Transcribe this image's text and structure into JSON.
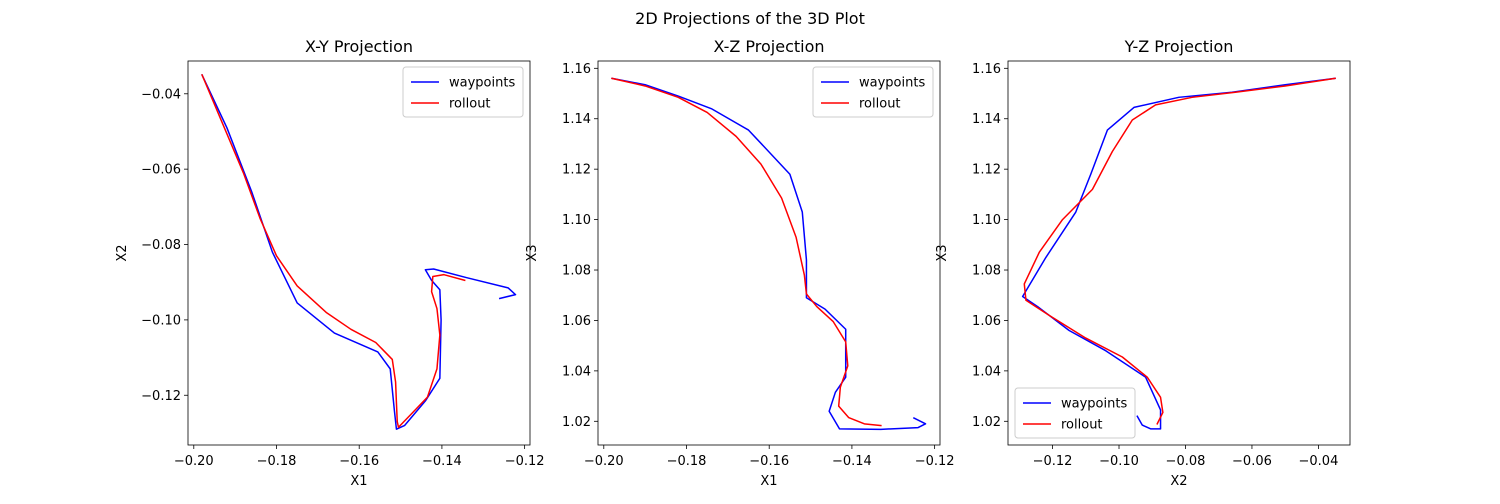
{
  "figure": {
    "title": "2D Projections of the 3D Plot"
  },
  "colors": {
    "waypoints": "#0000ff",
    "rollout": "#ff0000"
  },
  "chart_data": [
    {
      "type": "line",
      "title": "X-Y Projection",
      "xlabel": "X1",
      "ylabel": "X2",
      "xlim": [
        -0.2014,
        -0.1187
      ],
      "ylim": [
        -0.1332,
        -0.0313
      ],
      "xticks": [
        -0.2,
        -0.18,
        -0.16,
        -0.14,
        -0.12
      ],
      "xtick_labels": [
        "−0.20",
        "−0.18",
        "−0.16",
        "−0.14",
        "−0.12"
      ],
      "yticks": [
        -0.12,
        -0.1,
        -0.08,
        -0.06,
        -0.04
      ],
      "ytick_labels": [
        "−0.12",
        "−0.10",
        "−0.08",
        "−0.06",
        "−0.04"
      ],
      "legend": "top-right",
      "series": [
        {
          "name": "waypoints",
          "color": "#0000ff",
          "points": [
            [
              -0.198,
              -0.035
            ],
            [
              -0.192,
              -0.049
            ],
            [
              -0.186,
              -0.066
            ],
            [
              -0.181,
              -0.082
            ],
            [
              -0.175,
              -0.0955
            ],
            [
              -0.166,
              -0.1035
            ],
            [
              -0.1555,
              -0.1085
            ],
            [
              -0.1525,
              -0.113
            ],
            [
              -0.1515,
              -0.124
            ],
            [
              -0.151,
              -0.129
            ],
            [
              -0.149,
              -0.128
            ],
            [
              -0.144,
              -0.1215
            ],
            [
              -0.1405,
              -0.1155
            ],
            [
              -0.1402,
              -0.1
            ],
            [
              -0.1405,
              -0.092
            ],
            [
              -0.1425,
              -0.0895
            ],
            [
              -0.144,
              -0.0867
            ],
            [
              -0.142,
              -0.0865
            ],
            [
              -0.134,
              -0.0888
            ],
            [
              -0.124,
              -0.0915
            ],
            [
              -0.1222,
              -0.0933
            ],
            [
              -0.126,
              -0.0943
            ]
          ]
        },
        {
          "name": "rollout",
          "color": "#ff0000",
          "points": [
            [
              -0.198,
              -0.035
            ],
            [
              -0.193,
              -0.048
            ],
            [
              -0.188,
              -0.061
            ],
            [
              -0.184,
              -0.073
            ],
            [
              -0.18,
              -0.083
            ],
            [
              -0.175,
              -0.091
            ],
            [
              -0.168,
              -0.098
            ],
            [
              -0.162,
              -0.1025
            ],
            [
              -0.156,
              -0.106
            ],
            [
              -0.152,
              -0.1105
            ],
            [
              -0.1512,
              -0.1165
            ],
            [
              -0.151,
              -0.122
            ],
            [
              -0.1508,
              -0.127
            ],
            [
              -0.1505,
              -0.1285
            ],
            [
              -0.147,
              -0.1245
            ],
            [
              -0.1435,
              -0.1205
            ],
            [
              -0.1412,
              -0.113
            ],
            [
              -0.1405,
              -0.104
            ],
            [
              -0.1412,
              -0.097
            ],
            [
              -0.1425,
              -0.0925
            ],
            [
              -0.1422,
              -0.0885
            ],
            [
              -0.1395,
              -0.088
            ],
            [
              -0.1345,
              -0.0895
            ]
          ]
        }
      ]
    },
    {
      "type": "line",
      "title": "X-Z Projection",
      "xlabel": "X1",
      "ylabel": "X3",
      "xlim": [
        -0.2014,
        -0.1187
      ],
      "ylim": [
        1.0106,
        1.1629
      ],
      "xticks": [
        -0.2,
        -0.18,
        -0.16,
        -0.14,
        -0.12
      ],
      "xtick_labels": [
        "−0.20",
        "−0.18",
        "−0.16",
        "−0.14",
        "−0.12"
      ],
      "yticks": [
        1.02,
        1.04,
        1.06,
        1.08,
        1.1,
        1.12,
        1.14,
        1.16
      ],
      "ytick_labels": [
        "1.02",
        "1.04",
        "1.06",
        "1.08",
        "1.10",
        "1.12",
        "1.14",
        "1.16"
      ],
      "legend": "top-right",
      "series": [
        {
          "name": "waypoints",
          "color": "#0000ff",
          "points": [
            [
              -0.198,
              1.156
            ],
            [
              -0.19,
              1.1535
            ],
            [
              -0.182,
              1.149
            ],
            [
              -0.174,
              1.144
            ],
            [
              -0.165,
              1.1355
            ],
            [
              -0.155,
              1.118
            ],
            [
              -0.152,
              1.103
            ],
            [
              -0.151,
              1.084
            ],
            [
              -0.151,
              1.069
            ],
            [
              -0.1465,
              1.0645
            ],
            [
              -0.1415,
              1.0565
            ],
            [
              -0.1415,
              1.0375
            ],
            [
              -0.144,
              1.0315
            ],
            [
              -0.1455,
              1.024
            ],
            [
              -0.143,
              1.017
            ],
            [
              -0.133,
              1.0168
            ],
            [
              -0.124,
              1.0175
            ],
            [
              -0.1222,
              1.019
            ],
            [
              -0.125,
              1.0213
            ]
          ]
        },
        {
          "name": "rollout",
          "color": "#ff0000",
          "points": [
            [
              -0.198,
              1.156
            ],
            [
              -0.19,
              1.153
            ],
            [
              -0.182,
              1.1485
            ],
            [
              -0.175,
              1.1425
            ],
            [
              -0.168,
              1.133
            ],
            [
              -0.162,
              1.122
            ],
            [
              -0.157,
              1.1085
            ],
            [
              -0.1535,
              1.093
            ],
            [
              -0.1515,
              1.078
            ],
            [
              -0.151,
              1.0705
            ],
            [
              -0.1485,
              1.0655
            ],
            [
              -0.1445,
              1.0595
            ],
            [
              -0.1415,
              1.0515
            ],
            [
              -0.141,
              1.042
            ],
            [
              -0.1428,
              1.0335
            ],
            [
              -0.1432,
              1.026
            ],
            [
              -0.1408,
              1.0215
            ],
            [
              -0.137,
              1.019
            ],
            [
              -0.133,
              1.0183
            ]
          ]
        }
      ]
    },
    {
      "type": "line",
      "title": "Y-Z Projection",
      "xlabel": "X2",
      "ylabel": "X3",
      "xlim": [
        -0.1334,
        -0.0305
      ],
      "ylim": [
        1.0106,
        1.1629
      ],
      "xticks": [
        -0.12,
        -0.1,
        -0.08,
        -0.06,
        -0.04
      ],
      "xtick_labels": [
        "−0.12",
        "−0.10",
        "−0.08",
        "−0.06",
        "−0.04"
      ],
      "yticks": [
        1.02,
        1.04,
        1.06,
        1.08,
        1.1,
        1.12,
        1.14,
        1.16
      ],
      "ytick_labels": [
        "1.02",
        "1.04",
        "1.06",
        "1.08",
        "1.10",
        "1.12",
        "1.14",
        "1.16"
      ],
      "legend": "bottom-left",
      "series": [
        {
          "name": "waypoints",
          "color": "#0000ff",
          "points": [
            [
              -0.035,
              1.156
            ],
            [
              -0.05,
              1.1535
            ],
            [
              -0.066,
              1.1505
            ],
            [
              -0.082,
              1.1485
            ],
            [
              -0.0955,
              1.1445
            ],
            [
              -0.1035,
              1.1355
            ],
            [
              -0.1085,
              1.118
            ],
            [
              -0.113,
              1.103
            ],
            [
              -0.122,
              1.085
            ],
            [
              -0.129,
              1.0695
            ],
            [
              -0.1245,
              1.0655
            ],
            [
              -0.115,
              1.056
            ],
            [
              -0.104,
              1.048
            ],
            [
              -0.092,
              1.0375
            ],
            [
              -0.0875,
              1.0245
            ],
            [
              -0.0875,
              1.017
            ],
            [
              -0.0905,
              1.017
            ],
            [
              -0.093,
              1.0185
            ],
            [
              -0.0945,
              1.022
            ]
          ]
        },
        {
          "name": "rollout",
          "color": "#ff0000",
          "points": [
            [
              -0.035,
              1.156
            ],
            [
              -0.05,
              1.153
            ],
            [
              -0.065,
              1.1505
            ],
            [
              -0.078,
              1.1485
            ],
            [
              -0.089,
              1.1455
            ],
            [
              -0.096,
              1.1395
            ],
            [
              -0.102,
              1.127
            ],
            [
              -0.108,
              1.112
            ],
            [
              -0.117,
              1.1
            ],
            [
              -0.124,
              1.087
            ],
            [
              -0.1285,
              1.0745
            ],
            [
              -0.128,
              1.068
            ],
            [
              -0.121,
              1.062
            ],
            [
              -0.11,
              1.053
            ],
            [
              -0.099,
              1.0455
            ],
            [
              -0.0915,
              1.0375
            ],
            [
              -0.0875,
              1.0295
            ],
            [
              -0.0868,
              1.0235
            ],
            [
              -0.0885,
              1.019
            ]
          ]
        }
      ]
    }
  ]
}
